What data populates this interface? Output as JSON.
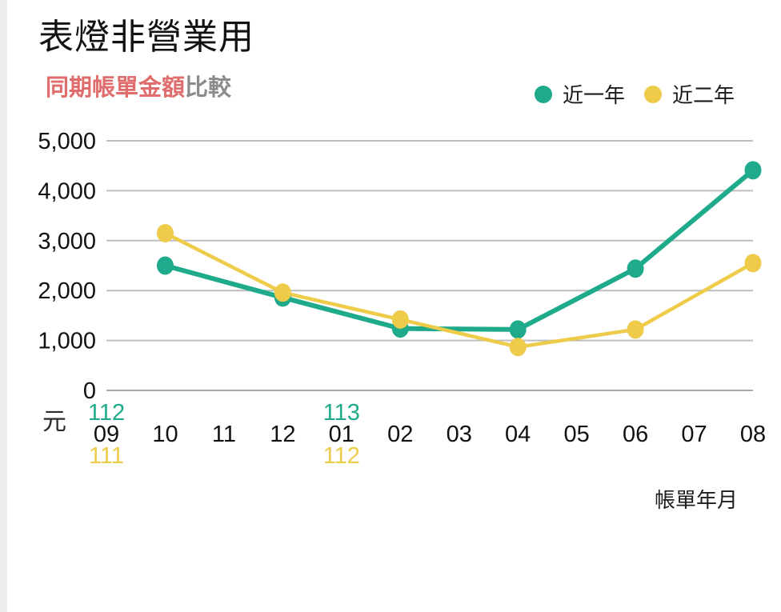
{
  "page": {
    "title": "表燈非營業用",
    "subtitle": {
      "highlight": "同期帳單金額",
      "rest": "比較"
    }
  },
  "chart_data": {
    "type": "line",
    "title": "同期帳單金額比較",
    "unit_label": "元",
    "x_axis_title": "帳單年月",
    "categories": [
      "09",
      "10",
      "11",
      "12",
      "01",
      "02",
      "03",
      "04",
      "05",
      "06",
      "07",
      "08"
    ],
    "point_category_indices": [
      1,
      3,
      5,
      7,
      9,
      11
    ],
    "series": [
      {
        "name": "近一年",
        "color": "#1faa8c",
        "values": [
          2500,
          1860,
          1240,
          1220,
          2440,
          4410
        ]
      },
      {
        "name": "近二年",
        "color": "#eecb49",
        "values": [
          3150,
          1960,
          1420,
          870,
          1220,
          2550
        ]
      }
    ],
    "year_labels": [
      {
        "category_index": 0,
        "top": "112",
        "bottom": "111"
      },
      {
        "category_index": 4,
        "top": "113",
        "bottom": "112"
      }
    ],
    "ylim": [
      0,
      5000
    ],
    "yticks": [
      0,
      1000,
      2000,
      3000,
      4000,
      5000
    ],
    "grid": "horizontal",
    "legend_position": "top-right"
  },
  "colors": {
    "subtitle_highlight": "#e06d6d",
    "subtitle_rest": "#8c8c8c",
    "grid_line": "#bdbdbd",
    "zero_line": "#a8a8a8",
    "axis_text": "#111111",
    "left_strip": "#ececec"
  }
}
